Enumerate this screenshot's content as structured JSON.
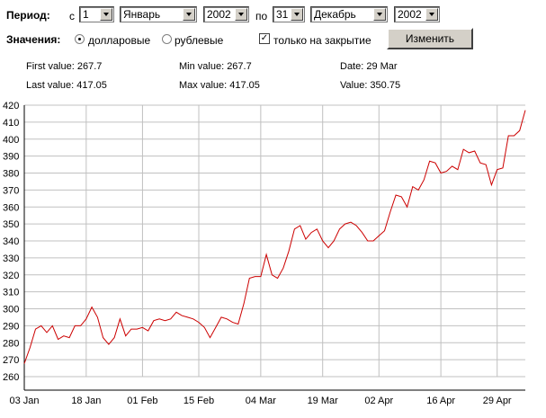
{
  "form": {
    "period_label": "Период:",
    "from_label": "с",
    "from_day": "1",
    "from_month": "Январь",
    "from_year": "2002",
    "to_label": "по",
    "to_day": "31",
    "to_month": "Декабрь",
    "to_year": "2002",
    "values_label": "Значения:",
    "radio_dollar": "долларовые",
    "radio_ruble": "рублевые",
    "radio_dollar_selected": true,
    "close_only_label": "только на закрытие",
    "close_only_checked": true,
    "submit_label": "Изменить"
  },
  "info": {
    "first_value": "First value: 267.7",
    "last_value": "Last value: 417.05",
    "min_value": "Min value: 267.7",
    "max_value": "Max value: 417.05",
    "date": "Date: 29 Mar",
    "value": "Value: 350.75"
  },
  "colors": {
    "line": "#cc0000",
    "grid": "#c0c0c0",
    "axis": "#000000",
    "button_face": "#d4d0c8"
  },
  "chart_data": {
    "type": "line",
    "title": "",
    "xlabel": "",
    "ylabel": "",
    "ylim": [
      260,
      420
    ],
    "yticks": [
      260,
      270,
      280,
      290,
      300,
      310,
      320,
      330,
      340,
      350,
      360,
      370,
      380,
      390,
      400,
      410,
      420
    ],
    "x_tick_labels": [
      "03 Jan",
      "18 Jan",
      "01 Feb",
      "15 Feb",
      "04 Mar",
      "19 Mar",
      "02 Apr",
      "16 Apr",
      "29 Apr"
    ],
    "x_tick_index": [
      0,
      11,
      21,
      31,
      42,
      53,
      63,
      74,
      84
    ],
    "grid": true,
    "series": [
      {
        "values": [
          267.7,
          277,
          288,
          290,
          286,
          290,
          282,
          284,
          283,
          290,
          290,
          294,
          301,
          295,
          283,
          279,
          283,
          294,
          284,
          288,
          288,
          289,
          287,
          293,
          294,
          293,
          294,
          298,
          296,
          295,
          294,
          292,
          289,
          283,
          289,
          295,
          294,
          292,
          291,
          303,
          318,
          319,
          319,
          332,
          320,
          318,
          324,
          334,
          347,
          349,
          341,
          345,
          347,
          340,
          336,
          340,
          347,
          350,
          351,
          349,
          345,
          340,
          340,
          343,
          346,
          357,
          367,
          366,
          360,
          372,
          370,
          376,
          387,
          386,
          380,
          381,
          384,
          382,
          394,
          392,
          393,
          386,
          385,
          373,
          382,
          383,
          402,
          402,
          405,
          417.05
        ]
      }
    ]
  }
}
